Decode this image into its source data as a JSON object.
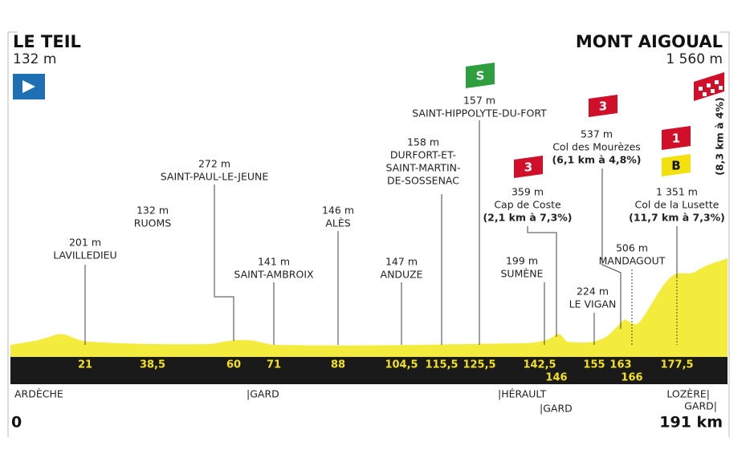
{
  "start": {
    "name": "LE TEIL",
    "altitude": "132 m",
    "km": "0"
  },
  "finish": {
    "name": "MONT AIGOUAL",
    "altitude": "1 560 m",
    "km": "191 km",
    "climb": "(8,3 km à 4%)"
  },
  "waypoints": [
    {
      "altitude": "201 m",
      "name": [
        "LAVILLEDIEU"
      ]
    },
    {
      "altitude": "132 m",
      "name": [
        "RUOMS"
      ]
    },
    {
      "altitude": "272 m",
      "name": [
        "SAINT-PAUL-LE-JEUNE"
      ]
    },
    {
      "altitude": "141 m",
      "name": [
        "SAINT-AMBROIX"
      ]
    },
    {
      "altitude": "146 m",
      "name": [
        "ALÈS"
      ]
    },
    {
      "altitude": "147 m",
      "name": [
        "ANDUZE"
      ]
    },
    {
      "altitude": "158 m",
      "name": [
        "DURFORT-ET-",
        "SAINT-MARTIN-",
        "DE-SOSSENAC"
      ]
    },
    {
      "altitude": "157 m",
      "name": [
        "SAINT-HIPPOLYTE-DU-FORT"
      ]
    },
    {
      "altitude": "359 m",
      "name": [
        "Cap de Coste"
      ],
      "climb": "(2,1 km à 7,3%)"
    },
    {
      "altitude": "199 m",
      "name": [
        "SUMÈNE"
      ]
    },
    {
      "altitude": "537 m",
      "name": [
        "Col des Mourèzes"
      ],
      "climb": "(6,1 km à 4,8%)"
    },
    {
      "altitude": "224 m",
      "name": [
        "LE VIGAN"
      ]
    },
    {
      "altitude": "506 m",
      "name": [
        "MANDAGOUT"
      ]
    },
    {
      "altitude": "1 351 m",
      "name": [
        "Col de la Lusette"
      ],
      "climb": "(11,7 km à 7,3%)"
    }
  ],
  "km_markers": [
    "21",
    "38,5",
    "60",
    "71",
    "88",
    "104,5",
    "115,5",
    "125,5",
    "142,5",
    "146",
    "155",
    "163",
    "166",
    "177,5"
  ],
  "regions": [
    "ARDÈCHE",
    "|GARD",
    "|HÉRAULT",
    "|GARD",
    "LOZÈRE|",
    "GARD|"
  ],
  "badges": [
    "S",
    "3",
    "3",
    "1",
    "B"
  ]
}
